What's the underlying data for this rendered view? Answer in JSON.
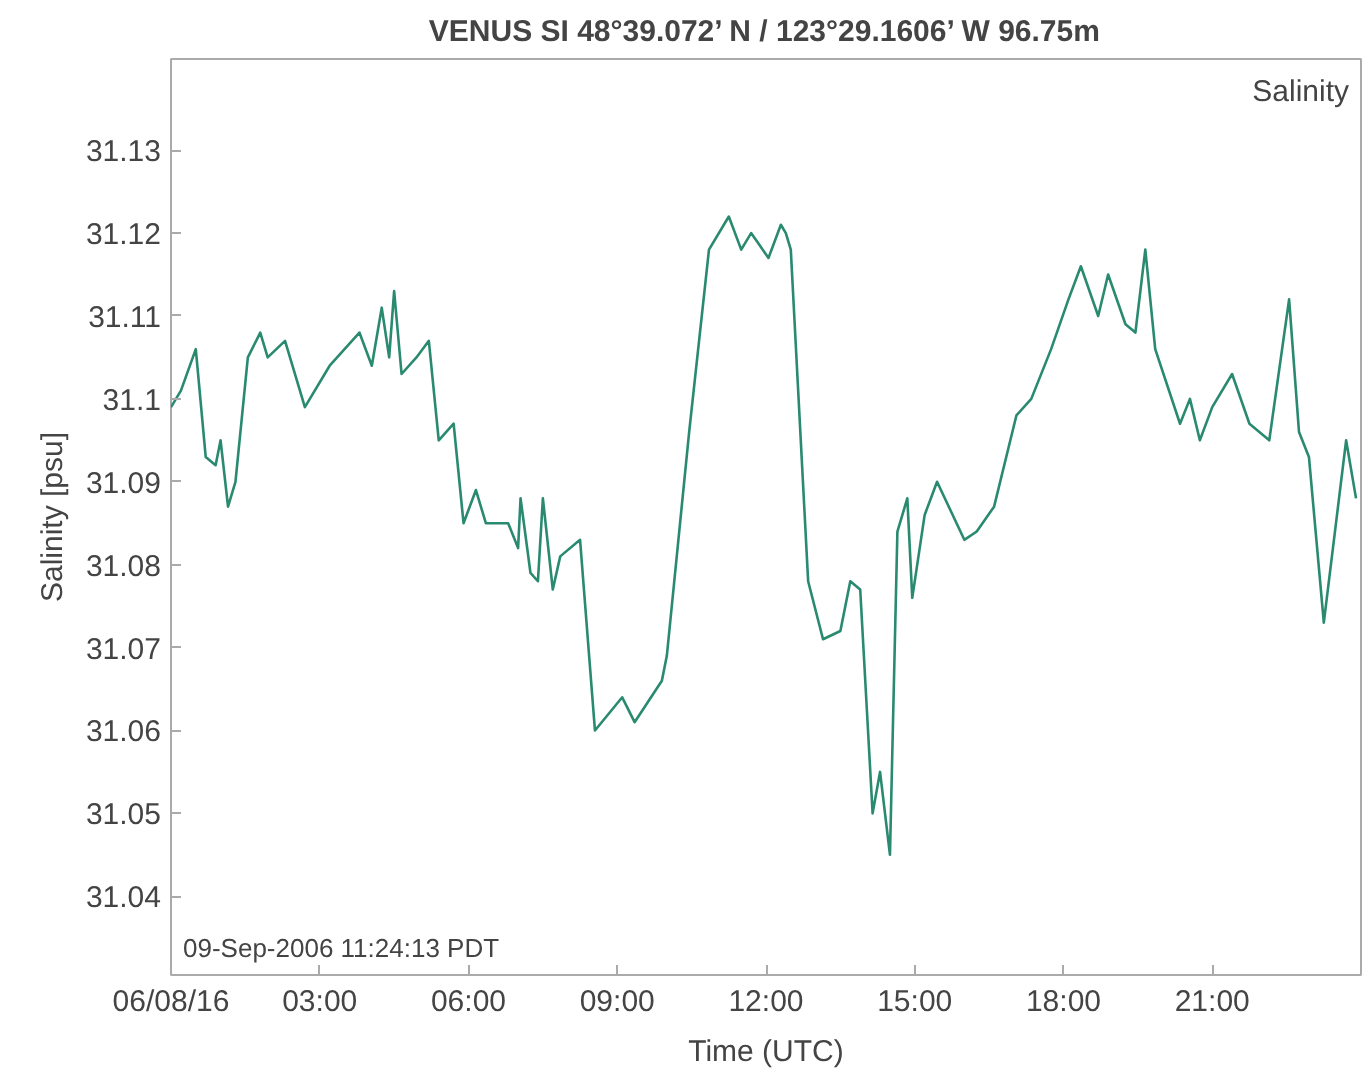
{
  "chart_data": {
    "type": "line",
    "title": "VENUS SI 48°39.072’ N / 123°29.1606’ W 96.75m",
    "xlabel": "Time (UTC)",
    "ylabel": "Salinity [psu]",
    "annotations": [
      "Salinity",
      "09-Sep-2006 11:24:13 PDT"
    ],
    "x": [
      0,
      0.2,
      0.5,
      0.7,
      0.9,
      1.0,
      1.15,
      1.3,
      1.55,
      1.8,
      1.95,
      2.3,
      2.7,
      3.2,
      3.8,
      4.05,
      4.25,
      4.4,
      4.5,
      4.65,
      4.95,
      5.2,
      5.4,
      5.7,
      5.9,
      6.15,
      6.35,
      6.8,
      7.0,
      7.05,
      7.25,
      7.4,
      7.5,
      7.7,
      7.85,
      8.25,
      8.55,
      9.1,
      9.35,
      9.9,
      10.0,
      10.45,
      10.85,
      11.25,
      11.5,
      11.7,
      12.05,
      12.3,
      12.4,
      12.5,
      12.85,
      13.15,
      13.5,
      13.7,
      13.9,
      14.15,
      14.3,
      14.5,
      14.65,
      14.85,
      14.95,
      15.2,
      15.45,
      16.0,
      16.25,
      16.6,
      17.05,
      17.35,
      17.75,
      18.1,
      18.35,
      18.7,
      18.9,
      19.25,
      19.45,
      19.65,
      19.85,
      20.35,
      20.55,
      20.75,
      21.0,
      21.4,
      21.75,
      22.15,
      22.55,
      22.75,
      22.95,
      23.25,
      23.7,
      23.9
    ],
    "series": [
      {
        "color": "#2a8a70",
        "values": [
          31.099,
          31.101,
          31.106,
          31.093,
          31.092,
          31.095,
          31.087,
          31.09,
          31.105,
          31.108,
          31.105,
          31.107,
          31.099,
          31.104,
          31.108,
          31.104,
          31.111,
          31.105,
          31.113,
          31.103,
          31.105,
          31.107,
          31.095,
          31.097,
          31.085,
          31.089,
          31.085,
          31.085,
          31.082,
          31.088,
          31.079,
          31.078,
          31.088,
          31.077,
          31.081,
          31.083,
          31.06,
          31.064,
          31.061,
          31.066,
          31.069,
          31.096,
          31.118,
          31.122,
          31.118,
          31.12,
          31.117,
          31.121,
          31.12,
          31.118,
          31.078,
          31.071,
          31.072,
          31.078,
          31.077,
          31.05,
          31.055,
          31.045,
          31.084,
          31.088,
          31.076,
          31.086,
          31.09,
          31.083,
          31.084,
          31.087,
          31.098,
          31.1,
          31.106,
          31.112,
          31.116,
          31.11,
          31.115,
          31.109,
          31.108,
          31.118,
          31.106,
          31.097,
          31.1,
          31.095,
          31.099,
          31.103,
          31.097,
          31.095,
          31.112,
          31.096,
          31.093,
          31.073,
          31.095,
          31.088
        ]
      }
    ],
    "xlim": [
      0,
      24
    ],
    "ylim": [
      31.0305,
      31.141
    ],
    "xticks": [
      {
        "value": 0,
        "label": "06/08/16"
      },
      {
        "value": 3,
        "label": "03:00"
      },
      {
        "value": 6,
        "label": "06:00"
      },
      {
        "value": 9,
        "label": "09:00"
      },
      {
        "value": 12,
        "label": "12:00"
      },
      {
        "value": 15,
        "label": "15:00"
      },
      {
        "value": 18,
        "label": "18:00"
      },
      {
        "value": 21,
        "label": "21:00"
      }
    ],
    "yticks": [
      31.04,
      31.05,
      31.06,
      31.07,
      31.08,
      31.09,
      {
        "value": 31.1,
        "label": "31.1"
      },
      31.11,
      31.12,
      31.13
    ],
    "grid": false,
    "marker": "none",
    "line_style": "solid"
  }
}
